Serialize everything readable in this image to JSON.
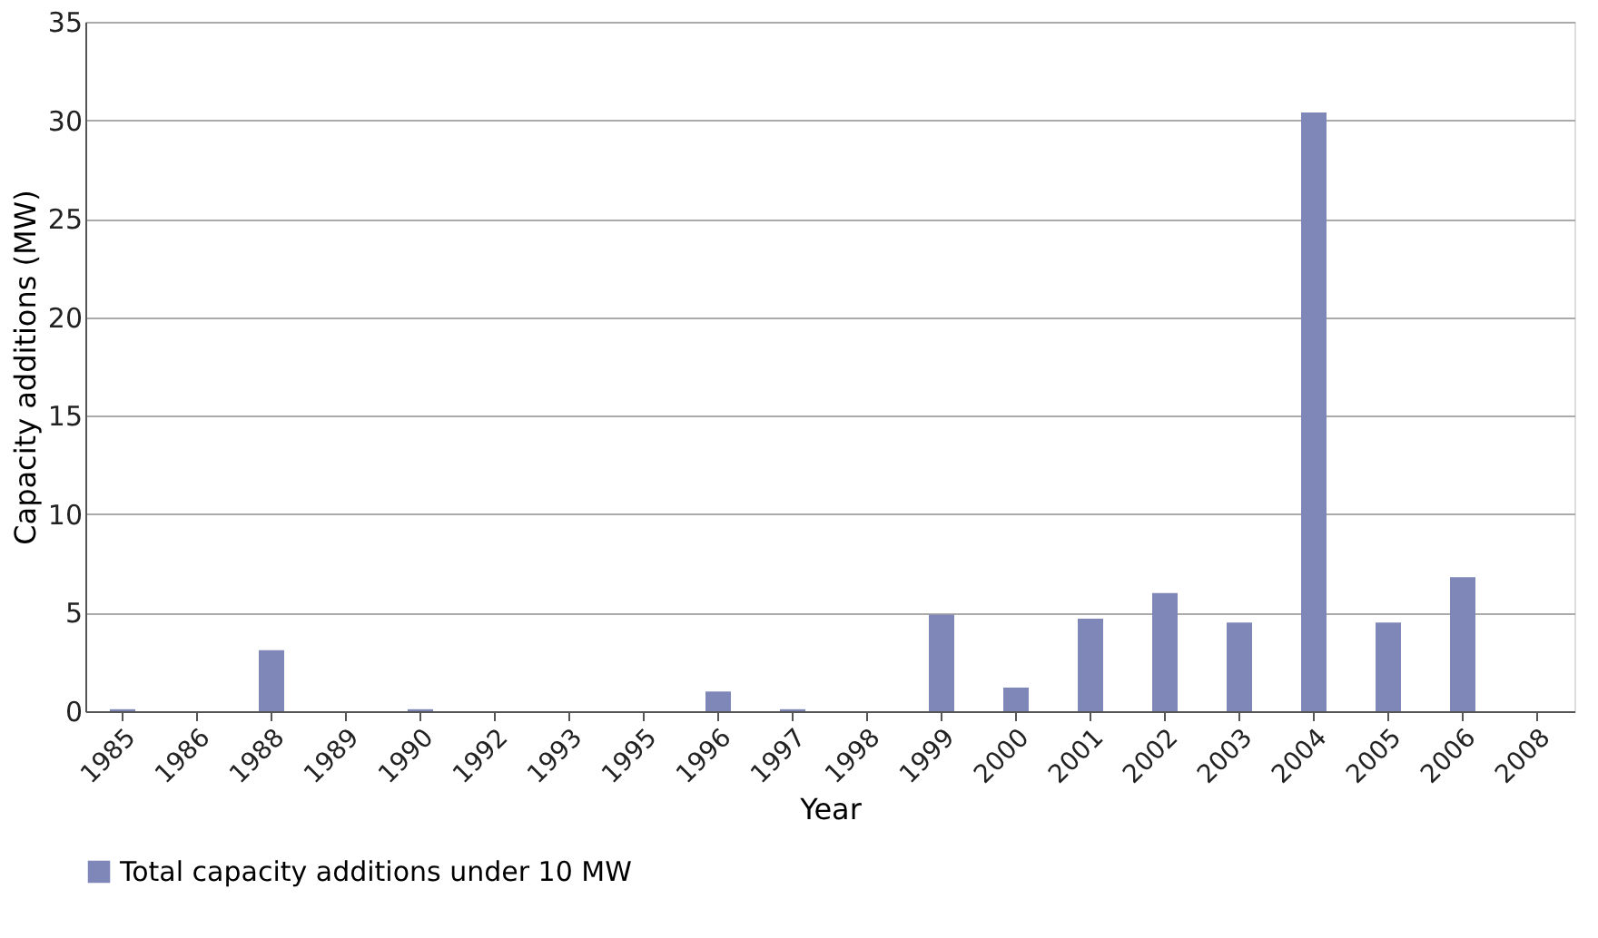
{
  "chart_data": {
    "type": "bar",
    "xlabel": "Year",
    "ylabel": "Capacity additions (MW)",
    "categories": [
      "1985",
      "1986",
      "1988",
      "1989",
      "1990",
      "1992",
      "1993",
      "1995",
      "1996",
      "1997",
      "1998",
      "1999",
      "2000",
      "2001",
      "2002",
      "2003",
      "2004",
      "2005",
      "2006",
      "2008"
    ],
    "series": [
      {
        "name": "Total capacity additions under 10 MW",
        "color": "#7f86b8",
        "values": [
          0.1,
          0,
          3.1,
          0,
          0.1,
          0,
          0,
          0,
          1.0,
          0.1,
          0,
          4.9,
          1.2,
          4.7,
          6.0,
          4.5,
          30.4,
          4.5,
          6.8,
          0
        ]
      }
    ],
    "ylim": [
      0,
      35
    ],
    "yticks": [
      0,
      5,
      10,
      15,
      20,
      25,
      30,
      35
    ],
    "grid": "y",
    "legend": "bottom"
  }
}
